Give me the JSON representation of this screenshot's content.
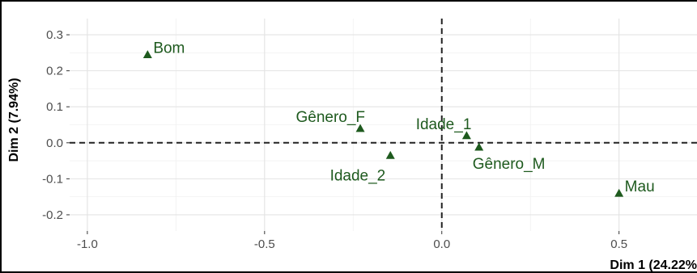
{
  "chart_data": {
    "type": "scatter",
    "xlabel": "Dim 1 (24.22%",
    "ylabel": "Dim 2 (7.94%)",
    "xlim": [
      -1.05,
      0.72
    ],
    "ylim": [
      -0.245,
      0.345
    ],
    "x_ticks": [
      -1.0,
      -0.5,
      0.0,
      0.5
    ],
    "x_tick_labels": [
      "-1.0",
      "-0.5",
      "0.0",
      "0.5"
    ],
    "y_ticks": [
      -0.2,
      -0.1,
      0.0,
      0.1,
      0.2,
      0.3
    ],
    "y_tick_labels": [
      "-0.2",
      "-0.1",
      "0.0",
      "0.1",
      "0.2",
      "0.3"
    ],
    "grid": true,
    "reference_lines": {
      "x": 0,
      "y": 0,
      "style": "dashed"
    },
    "marker": "triangle",
    "color": "#1e5a1e",
    "points": [
      {
        "label": "Bom",
        "x": -0.83,
        "y": 0.245,
        "label_pos": "right"
      },
      {
        "label": "Gênero_F",
        "x": -0.23,
        "y": 0.04,
        "label_pos": "upper-left"
      },
      {
        "label": "Idade_1",
        "x": 0.07,
        "y": 0.02,
        "label_pos": "upper-left"
      },
      {
        "label": "Idade_2",
        "x": -0.145,
        "y": -0.035,
        "label_pos": "lower-left"
      },
      {
        "label": "Gênero_M",
        "x": 0.105,
        "y": -0.012,
        "label_pos": "lower-right"
      },
      {
        "label": "Mau",
        "x": 0.5,
        "y": -0.14,
        "label_pos": "right"
      }
    ]
  }
}
